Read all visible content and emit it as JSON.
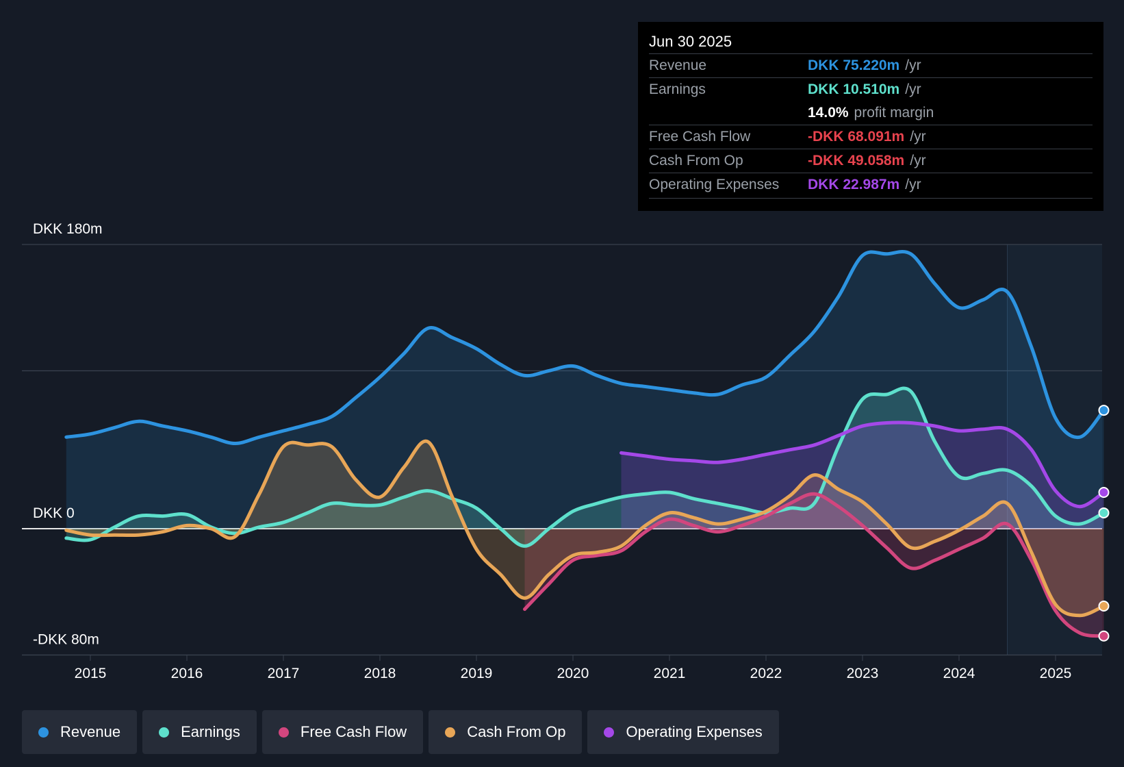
{
  "tooltip": {
    "date": "Jun 30 2025",
    "rows": [
      {
        "label": "Revenue",
        "value": "DKK 75.220m",
        "unit": "/yr",
        "color": "#2d93e0"
      },
      {
        "label": "Earnings",
        "value": "DKK 10.510m",
        "unit": "/yr",
        "color": "#5ee0cc"
      },
      {
        "label": "",
        "value": "14.0%",
        "unit": "profit margin",
        "color": "#ffffff"
      },
      {
        "label": "Free Cash Flow",
        "value": "-DKK 68.091m",
        "unit": "/yr",
        "color": "#e8434e"
      },
      {
        "label": "Cash From Op",
        "value": "-DKK 49.058m",
        "unit": "/yr",
        "color": "#e8434e"
      },
      {
        "label": "Operating Expenses",
        "value": "DKK 22.987m",
        "unit": "/yr",
        "color": "#a448e8"
      }
    ]
  },
  "legend": [
    {
      "label": "Revenue",
      "color": "#2d93e0"
    },
    {
      "label": "Earnings",
      "color": "#5ee0cc"
    },
    {
      "label": "Free Cash Flow",
      "color": "#d2467e"
    },
    {
      "label": "Cash From Op",
      "color": "#e8a657"
    },
    {
      "label": "Operating Expenses",
      "color": "#a448e8"
    }
  ],
  "chart_data": {
    "type": "line",
    "title": "",
    "xlabel": "",
    "ylabel": "",
    "y_labels": {
      "top": "DKK 180m",
      "zero": "DKK 0",
      "bottom": "-DKK 80m"
    },
    "ylim": [
      -80,
      180
    ],
    "xlim": [
      2014.25,
      2025.5
    ],
    "x_ticks": [
      2015,
      2016,
      2017,
      2018,
      2019,
      2020,
      2021,
      2022,
      2023,
      2024,
      2025
    ],
    "x_tick_labels": [
      "2015",
      "2016",
      "2017",
      "2018",
      "2019",
      "2020",
      "2021",
      "2022",
      "2023",
      "2024",
      "2025"
    ],
    "gridlines": [
      180,
      100,
      0,
      -80
    ],
    "forecast_start": 2024.5,
    "series": [
      {
        "name": "Revenue",
        "color": "#2d93e0",
        "fill": true,
        "x": [
          2014.75,
          2015.0,
          2015.25,
          2015.5,
          2015.75,
          2016.0,
          2016.25,
          2016.5,
          2016.75,
          2017.0,
          2017.25,
          2017.5,
          2017.75,
          2018.0,
          2018.25,
          2018.5,
          2018.75,
          2019.0,
          2019.25,
          2019.5,
          2019.75,
          2020.0,
          2020.25,
          2020.5,
          2020.75,
          2021.0,
          2021.25,
          2021.5,
          2021.75,
          2022.0,
          2022.25,
          2022.5,
          2022.75,
          2023.0,
          2023.25,
          2023.5,
          2023.75,
          2024.0,
          2024.25,
          2024.5,
          2024.75,
          2025.0,
          2025.25,
          2025.5
        ],
        "values": [
          58,
          60,
          64,
          68,
          65,
          62,
          58,
          54,
          58,
          62,
          66,
          71,
          83,
          96,
          111,
          127,
          121,
          114,
          104,
          97,
          100,
          103,
          97,
          92,
          90,
          88,
          86,
          85,
          91,
          96,
          110,
          125,
          147,
          173,
          174,
          174,
          155,
          140,
          145,
          150,
          115,
          70,
          58,
          75
        ]
      },
      {
        "name": "Earnings",
        "color": "#5ee0cc",
        "fill": true,
        "x": [
          2014.75,
          2015.0,
          2015.25,
          2015.5,
          2015.75,
          2016.0,
          2016.25,
          2016.5,
          2016.75,
          2017.0,
          2017.25,
          2017.5,
          2017.75,
          2018.0,
          2018.25,
          2018.5,
          2018.75,
          2019.0,
          2019.25,
          2019.5,
          2019.75,
          2020.0,
          2020.25,
          2020.5,
          2020.75,
          2021.0,
          2021.25,
          2021.5,
          2021.75,
          2022.0,
          2022.25,
          2022.5,
          2022.75,
          2023.0,
          2023.25,
          2023.5,
          2023.75,
          2024.0,
          2024.25,
          2024.5,
          2024.75,
          2025.0,
          2025.25,
          2025.5
        ],
        "values": [
          -6,
          -7,
          1,
          8,
          8,
          9,
          1,
          -3,
          1,
          4,
          10,
          16,
          15,
          15,
          20,
          24,
          19,
          13,
          0,
          -11,
          0,
          11,
          16,
          20,
          22,
          23,
          19,
          16,
          13,
          10,
          13,
          16,
          52,
          82,
          85,
          87,
          55,
          33,
          35,
          37,
          27,
          8,
          3,
          10
        ]
      },
      {
        "name": "Free Cash Flow",
        "color": "#d2467e",
        "fill": true,
        "x": [
          2019.5,
          2019.75,
          2020.0,
          2020.25,
          2020.5,
          2020.75,
          2021.0,
          2021.25,
          2021.5,
          2021.75,
          2022.0,
          2022.25,
          2022.5,
          2022.75,
          2023.0,
          2023.25,
          2023.5,
          2023.75,
          2024.0,
          2024.25,
          2024.5,
          2024.75,
          2025.0,
          2025.25,
          2025.5
        ],
        "values": [
          -51,
          -35,
          -20,
          -17,
          -14,
          -2,
          6,
          2,
          -2,
          2,
          8,
          16,
          22,
          14,
          2,
          -12,
          -25,
          -20,
          -13,
          -6,
          3,
          -20,
          -52,
          -66,
          -68
        ]
      },
      {
        "name": "Cash From Op",
        "color": "#e8a657",
        "fill": true,
        "x": [
          2014.75,
          2015.0,
          2015.25,
          2015.5,
          2015.75,
          2016.0,
          2016.25,
          2016.5,
          2016.75,
          2017.0,
          2017.25,
          2017.5,
          2017.75,
          2018.0,
          2018.25,
          2018.5,
          2018.75,
          2019.0,
          2019.25,
          2019.5,
          2019.75,
          2020.0,
          2020.25,
          2020.5,
          2020.75,
          2021.0,
          2021.25,
          2021.5,
          2021.75,
          2022.0,
          2022.25,
          2022.5,
          2022.75,
          2023.0,
          2023.25,
          2023.5,
          2023.75,
          2024.0,
          2024.25,
          2024.5,
          2024.75,
          2025.0,
          2025.25,
          2025.5
        ],
        "values": [
          -1,
          -4,
          -4,
          -4,
          -2,
          2,
          0,
          -5,
          22,
          52,
          53,
          52,
          31,
          20,
          39,
          55,
          20,
          -13,
          -29,
          -44,
          -29,
          -17,
          -15,
          -11,
          2,
          10,
          7,
          3,
          6,
          11,
          21,
          34,
          25,
          17,
          3,
          -12,
          -8,
          -1,
          8,
          16,
          -15,
          -48,
          -55,
          -49
        ]
      },
      {
        "name": "Operating Expenses",
        "color": "#a448e8",
        "fill": true,
        "x": [
          2020.5,
          2020.75,
          2021.0,
          2021.25,
          2021.5,
          2021.75,
          2022.0,
          2022.25,
          2022.5,
          2022.75,
          2023.0,
          2023.25,
          2023.5,
          2023.75,
          2024.0,
          2024.25,
          2024.5,
          2024.75,
          2025.0,
          2025.25,
          2025.5
        ],
        "values": [
          48,
          46,
          44,
          43,
          42,
          44,
          47,
          50,
          53,
          59,
          65,
          67,
          67,
          65,
          62,
          63,
          63,
          50,
          24,
          14,
          23
        ]
      }
    ]
  }
}
